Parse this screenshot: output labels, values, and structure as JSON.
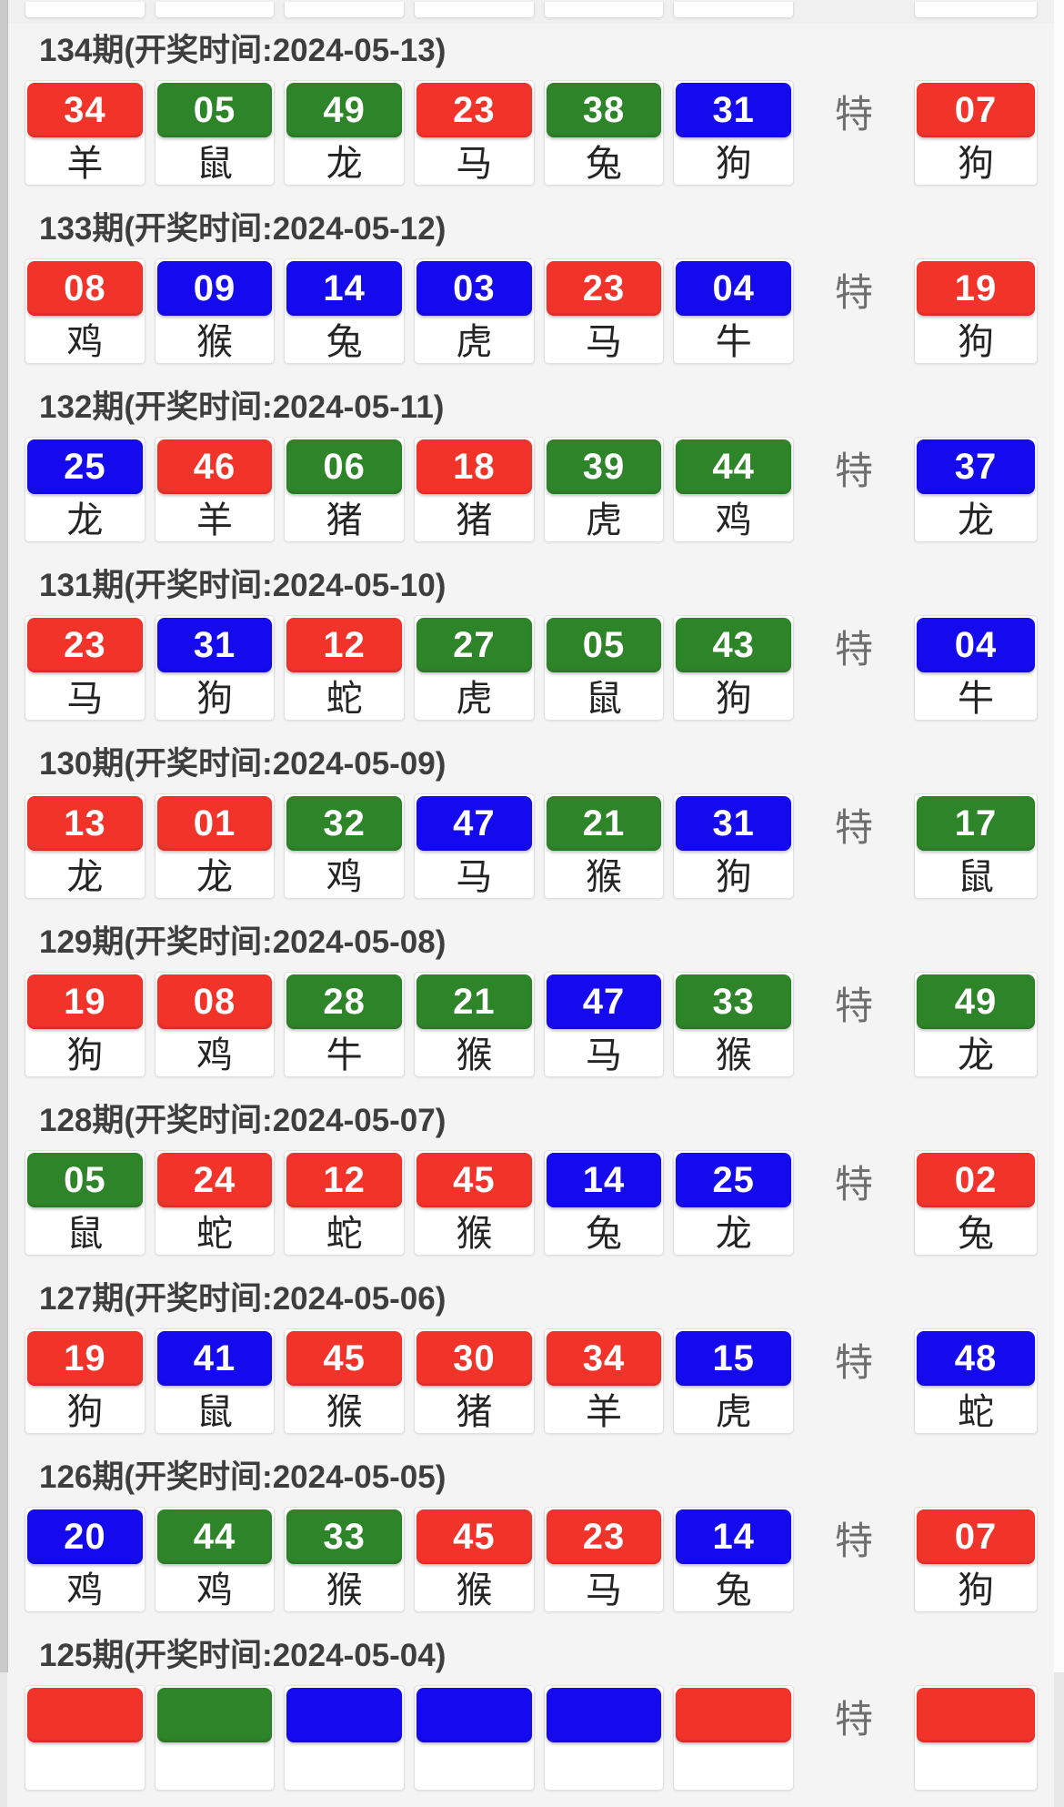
{
  "labels": {
    "special_marker": "特"
  },
  "colors": {
    "red": "#f2332a",
    "green": "#2e8428",
    "blue": "#1509ee"
  },
  "rows": [
    {
      "header": "134期(开奖时间:2024-05-13)",
      "main": [
        {
          "num": "34",
          "color": "red",
          "zodiac": "羊"
        },
        {
          "num": "05",
          "color": "green",
          "zodiac": "鼠"
        },
        {
          "num": "49",
          "color": "green",
          "zodiac": "龙"
        },
        {
          "num": "23",
          "color": "red",
          "zodiac": "马"
        },
        {
          "num": "38",
          "color": "green",
          "zodiac": "兔"
        },
        {
          "num": "31",
          "color": "blue",
          "zodiac": "狗"
        }
      ],
      "special": {
        "num": "07",
        "color": "red",
        "zodiac": "狗"
      }
    },
    {
      "header": "133期(开奖时间:2024-05-12)",
      "main": [
        {
          "num": "08",
          "color": "red",
          "zodiac": "鸡"
        },
        {
          "num": "09",
          "color": "blue",
          "zodiac": "猴"
        },
        {
          "num": "14",
          "color": "blue",
          "zodiac": "兔"
        },
        {
          "num": "03",
          "color": "blue",
          "zodiac": "虎"
        },
        {
          "num": "23",
          "color": "red",
          "zodiac": "马"
        },
        {
          "num": "04",
          "color": "blue",
          "zodiac": "牛"
        }
      ],
      "special": {
        "num": "19",
        "color": "red",
        "zodiac": "狗"
      }
    },
    {
      "header": "132期(开奖时间:2024-05-11)",
      "main": [
        {
          "num": "25",
          "color": "blue",
          "zodiac": "龙"
        },
        {
          "num": "46",
          "color": "red",
          "zodiac": "羊"
        },
        {
          "num": "06",
          "color": "green",
          "zodiac": "猪"
        },
        {
          "num": "18",
          "color": "red",
          "zodiac": "猪"
        },
        {
          "num": "39",
          "color": "green",
          "zodiac": "虎"
        },
        {
          "num": "44",
          "color": "green",
          "zodiac": "鸡"
        }
      ],
      "special": {
        "num": "37",
        "color": "blue",
        "zodiac": "龙"
      }
    },
    {
      "header": "131期(开奖时间:2024-05-10)",
      "main": [
        {
          "num": "23",
          "color": "red",
          "zodiac": "马"
        },
        {
          "num": "31",
          "color": "blue",
          "zodiac": "狗"
        },
        {
          "num": "12",
          "color": "red",
          "zodiac": "蛇"
        },
        {
          "num": "27",
          "color": "green",
          "zodiac": "虎"
        },
        {
          "num": "05",
          "color": "green",
          "zodiac": "鼠"
        },
        {
          "num": "43",
          "color": "green",
          "zodiac": "狗"
        }
      ],
      "special": {
        "num": "04",
        "color": "blue",
        "zodiac": "牛"
      }
    },
    {
      "header": "130期(开奖时间:2024-05-09)",
      "main": [
        {
          "num": "13",
          "color": "red",
          "zodiac": "龙"
        },
        {
          "num": "01",
          "color": "red",
          "zodiac": "龙"
        },
        {
          "num": "32",
          "color": "green",
          "zodiac": "鸡"
        },
        {
          "num": "47",
          "color": "blue",
          "zodiac": "马"
        },
        {
          "num": "21",
          "color": "green",
          "zodiac": "猴"
        },
        {
          "num": "31",
          "color": "blue",
          "zodiac": "狗"
        }
      ],
      "special": {
        "num": "17",
        "color": "green",
        "zodiac": "鼠"
      }
    },
    {
      "header": "129期(开奖时间:2024-05-08)",
      "main": [
        {
          "num": "19",
          "color": "red",
          "zodiac": "狗"
        },
        {
          "num": "08",
          "color": "red",
          "zodiac": "鸡"
        },
        {
          "num": "28",
          "color": "green",
          "zodiac": "牛"
        },
        {
          "num": "21",
          "color": "green",
          "zodiac": "猴"
        },
        {
          "num": "47",
          "color": "blue",
          "zodiac": "马"
        },
        {
          "num": "33",
          "color": "green",
          "zodiac": "猴"
        }
      ],
      "special": {
        "num": "49",
        "color": "green",
        "zodiac": "龙"
      }
    },
    {
      "header": "128期(开奖时间:2024-05-07)",
      "main": [
        {
          "num": "05",
          "color": "green",
          "zodiac": "鼠"
        },
        {
          "num": "24",
          "color": "red",
          "zodiac": "蛇"
        },
        {
          "num": "12",
          "color": "red",
          "zodiac": "蛇"
        },
        {
          "num": "45",
          "color": "red",
          "zodiac": "猴"
        },
        {
          "num": "14",
          "color": "blue",
          "zodiac": "兔"
        },
        {
          "num": "25",
          "color": "blue",
          "zodiac": "龙"
        }
      ],
      "special": {
        "num": "02",
        "color": "red",
        "zodiac": "兔"
      }
    },
    {
      "header": "127期(开奖时间:2024-05-06)",
      "main": [
        {
          "num": "19",
          "color": "red",
          "zodiac": "狗"
        },
        {
          "num": "41",
          "color": "blue",
          "zodiac": "鼠"
        },
        {
          "num": "45",
          "color": "red",
          "zodiac": "猴"
        },
        {
          "num": "30",
          "color": "red",
          "zodiac": "猪"
        },
        {
          "num": "34",
          "color": "red",
          "zodiac": "羊"
        },
        {
          "num": "15",
          "color": "blue",
          "zodiac": "虎"
        }
      ],
      "special": {
        "num": "48",
        "color": "blue",
        "zodiac": "蛇"
      }
    },
    {
      "header": "126期(开奖时间:2024-05-05)",
      "main": [
        {
          "num": "20",
          "color": "blue",
          "zodiac": "鸡"
        },
        {
          "num": "44",
          "color": "green",
          "zodiac": "鸡"
        },
        {
          "num": "33",
          "color": "green",
          "zodiac": "猴"
        },
        {
          "num": "45",
          "color": "red",
          "zodiac": "猴"
        },
        {
          "num": "23",
          "color": "red",
          "zodiac": "马"
        },
        {
          "num": "14",
          "color": "blue",
          "zodiac": "兔"
        }
      ],
      "special": {
        "num": "07",
        "color": "red",
        "zodiac": "狗"
      }
    },
    {
      "header": "125期(开奖时间:2024-05-04)",
      "partial": true,
      "main": [
        {
          "num": "",
          "color": "red",
          "zodiac": ""
        },
        {
          "num": "",
          "color": "green",
          "zodiac": ""
        },
        {
          "num": "",
          "color": "blue",
          "zodiac": ""
        },
        {
          "num": "",
          "color": "blue",
          "zodiac": ""
        },
        {
          "num": "",
          "color": "blue",
          "zodiac": ""
        },
        {
          "num": "",
          "color": "red",
          "zodiac": ""
        }
      ],
      "special": {
        "num": "",
        "color": "red",
        "zodiac": ""
      }
    }
  ]
}
